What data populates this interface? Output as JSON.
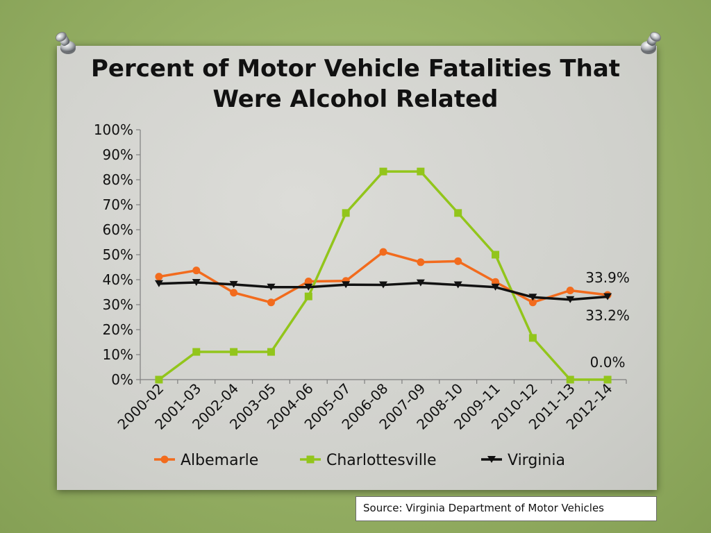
{
  "chart_data": {
    "type": "line",
    "title_lines": [
      "Percent of Motor Vehicle Fatalities That",
      "Were Alcohol Related"
    ],
    "categories": [
      "2000-02",
      "2001-03",
      "2002-04",
      "2003-05",
      "2004-06",
      "2005-07",
      "2006-08",
      "2007-09",
      "2008-10",
      "2009-11",
      "2010-12",
      "2011-13",
      "2012-14"
    ],
    "ylim": [
      0,
      100
    ],
    "y_ticks": [
      0,
      10,
      20,
      30,
      40,
      50,
      60,
      70,
      80,
      90,
      100
    ],
    "y_tick_format": "percent",
    "grid": false,
    "legend_position": "bottom",
    "series": [
      {
        "name": "Albemarle",
        "color": "#f26b1d",
        "marker": "circle",
        "values": [
          41.2,
          43.7,
          34.8,
          30.9,
          39.3,
          39.5,
          51.1,
          47.0,
          47.4,
          39.1,
          30.9,
          35.7,
          33.9
        ]
      },
      {
        "name": "Charlottesville",
        "color": "#92c51b",
        "marker": "square",
        "values": [
          0,
          11.1,
          11.1,
          11.1,
          33.3,
          66.7,
          83.3,
          83.3,
          66.7,
          50.0,
          16.7,
          0,
          0
        ]
      },
      {
        "name": "Virginia",
        "color": "#111111",
        "marker": "triangle-down",
        "values": [
          38.4,
          38.9,
          38.1,
          37.0,
          37.0,
          38.0,
          37.9,
          38.7,
          37.9,
          37.0,
          33.0,
          32.0,
          33.2
        ]
      }
    ],
    "annotations": [
      {
        "text": "33.9%",
        "series": "Albemarle",
        "category": "2012-14"
      },
      {
        "text": "33.2%",
        "series": "Virginia",
        "category": "2012-14"
      },
      {
        "text": "0.0%",
        "series": "Charlottesville",
        "category": "2012-14"
      }
    ]
  },
  "source_text": "Source: Virginia Department of Motor Vehicles"
}
